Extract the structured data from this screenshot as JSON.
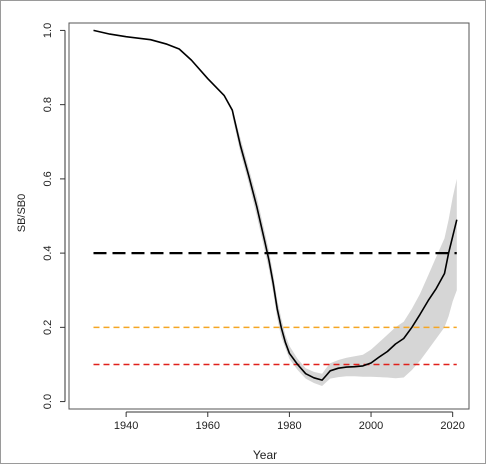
{
  "chart_data": {
    "type": "line",
    "title": "",
    "xlabel": "Year",
    "ylabel": "SB/SB0",
    "xlim": [
      1926,
      2024
    ],
    "ylim": [
      -0.02,
      1.02
    ],
    "x_ticks": [
      1940,
      1960,
      1980,
      2000,
      2020
    ],
    "y_ticks": [
      0.0,
      0.2,
      0.4,
      0.6,
      0.8,
      1.0
    ],
    "x_tick_labels": [
      "1940",
      "1960",
      "1980",
      "2000",
      "2020"
    ],
    "y_tick_labels": [
      "0.0",
      "0.2",
      "0.4",
      "0.6",
      "0.8",
      "1.0"
    ],
    "grid": false,
    "series": [
      {
        "style": "solid",
        "color": "#000000",
        "points": [
          [
            1932,
            1.0
          ],
          [
            1936,
            0.99
          ],
          [
            1940,
            0.983
          ],
          [
            1946,
            0.975
          ],
          [
            1950,
            0.963
          ],
          [
            1953,
            0.95
          ],
          [
            1956,
            0.92
          ],
          [
            1960,
            0.87
          ],
          [
            1964,
            0.825
          ],
          [
            1966,
            0.785
          ],
          [
            1968,
            0.69
          ],
          [
            1970,
            0.61
          ],
          [
            1972,
            0.525
          ],
          [
            1974,
            0.43
          ],
          [
            1975,
            0.38
          ],
          [
            1976,
            0.32
          ],
          [
            1977,
            0.25
          ],
          [
            1978,
            0.2
          ],
          [
            1979,
            0.16
          ],
          [
            1980,
            0.13
          ],
          [
            1982,
            0.1
          ],
          [
            1984,
            0.075
          ],
          [
            1986,
            0.064
          ],
          [
            1988,
            0.058
          ],
          [
            1989,
            0.07
          ],
          [
            1990,
            0.083
          ],
          [
            1992,
            0.09
          ],
          [
            1994,
            0.093
          ],
          [
            1996,
            0.094
          ],
          [
            1998,
            0.096
          ],
          [
            2000,
            0.104
          ],
          [
            2002,
            0.12
          ],
          [
            2004,
            0.135
          ],
          [
            2006,
            0.155
          ],
          [
            2008,
            0.17
          ],
          [
            2010,
            0.2
          ],
          [
            2012,
            0.235
          ],
          [
            2014,
            0.272
          ],
          [
            2016,
            0.305
          ],
          [
            2018,
            0.345
          ],
          [
            2019,
            0.4
          ],
          [
            2020,
            0.445
          ],
          [
            2021,
            0.49
          ]
        ]
      }
    ],
    "ci_band": {
      "color": "#d6d6d6",
      "x": [
        1966,
        1968,
        1970,
        1972,
        1974,
        1975,
        1976,
        1977,
        1978,
        1979,
        1980,
        1982,
        1984,
        1986,
        1988,
        1989,
        1990,
        1992,
        1994,
        1996,
        1998,
        2000,
        2002,
        2004,
        2006,
        2008,
        2010,
        2012,
        2014,
        2016,
        2018,
        2019,
        2020,
        2021
      ],
      "upper": [
        0.79,
        0.71,
        0.63,
        0.55,
        0.455,
        0.405,
        0.345,
        0.275,
        0.225,
        0.18,
        0.15,
        0.115,
        0.09,
        0.08,
        0.075,
        0.09,
        0.103,
        0.112,
        0.118,
        0.122,
        0.126,
        0.14,
        0.16,
        0.18,
        0.2,
        0.215,
        0.25,
        0.29,
        0.34,
        0.39,
        0.44,
        0.49,
        0.55,
        0.6
      ],
      "lower": [
        0.77,
        0.67,
        0.59,
        0.5,
        0.405,
        0.355,
        0.295,
        0.225,
        0.175,
        0.145,
        0.115,
        0.085,
        0.062,
        0.05,
        0.042,
        0.052,
        0.062,
        0.066,
        0.068,
        0.068,
        0.067,
        0.067,
        0.066,
        0.065,
        0.063,
        0.065,
        0.085,
        0.11,
        0.14,
        0.17,
        0.2,
        0.23,
        0.27,
        0.3
      ]
    },
    "reference_lines": [
      {
        "y": 0.4,
        "color": "#000000",
        "style": "dashed-long"
      },
      {
        "y": 0.2,
        "color": "#f5a623",
        "style": "dashed"
      },
      {
        "y": 0.1,
        "color": "#e0201b",
        "style": "dashed"
      }
    ]
  }
}
